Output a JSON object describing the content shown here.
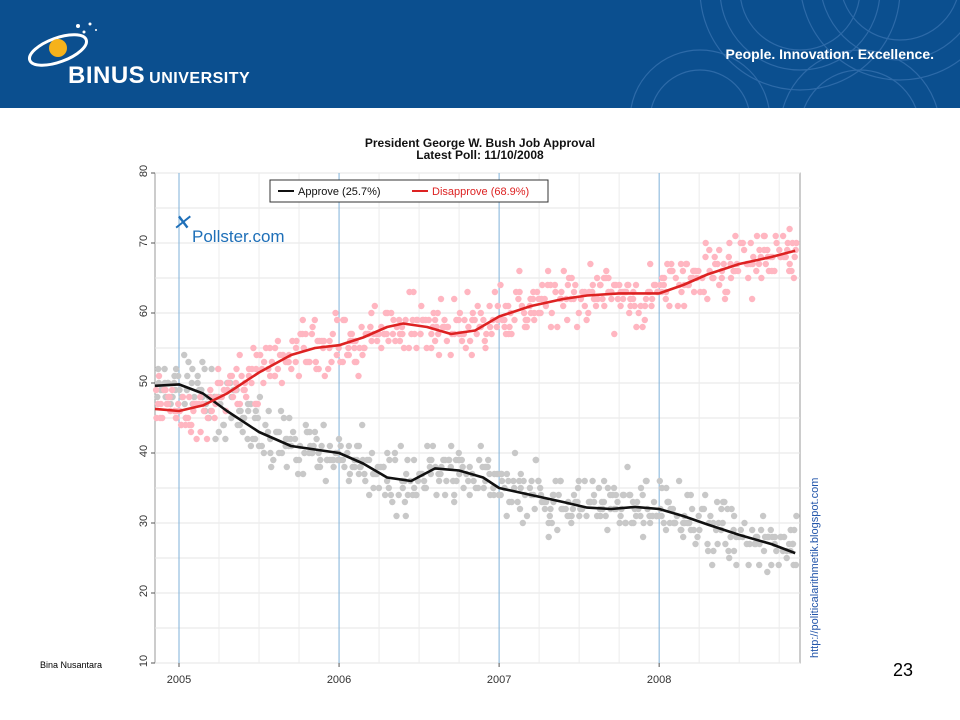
{
  "header": {
    "university_name": "BINUS",
    "university_suffix": "UNIVERSITY",
    "tagline": "People. Innovation. Excellence."
  },
  "footer": {
    "left_text": "Bina Nusantara",
    "page_number": "23"
  },
  "chart_data": {
    "type": "scatter",
    "title": "President George W. Bush Job Approval",
    "subtitle": "Latest Poll: 11/10/2008",
    "watermark": "Pollster.com",
    "side_credit": "http://politicalarithmetik.blogspot.com",
    "xlim": [
      2004.85,
      2008.88
    ],
    "ylim": [
      10,
      80
    ],
    "yticks": [
      10,
      20,
      30,
      40,
      50,
      60,
      70,
      80
    ],
    "xticks": [
      2005,
      2006,
      2007,
      2008
    ],
    "xtick_labels": [
      "2005",
      "2006",
      "2007",
      "2008"
    ],
    "legend_position": "top",
    "grid": true,
    "series": [
      {
        "name": "Approve (25.7%)",
        "color": "#111111",
        "point_color": "#c8c8c8",
        "trend": [
          [
            2004.85,
            49.6
          ],
          [
            2005.0,
            49.8
          ],
          [
            2005.15,
            48.5
          ],
          [
            2005.3,
            46.0
          ],
          [
            2005.5,
            43.0
          ],
          [
            2005.7,
            41.0
          ],
          [
            2005.85,
            40.5
          ],
          [
            2006.0,
            40.0
          ],
          [
            2006.15,
            38.5
          ],
          [
            2006.3,
            36.5
          ],
          [
            2006.45,
            36.0
          ],
          [
            2006.6,
            37.8
          ],
          [
            2006.75,
            37.5
          ],
          [
            2006.9,
            36.5
          ],
          [
            2007.0,
            35.0
          ],
          [
            2007.2,
            34.0
          ],
          [
            2007.4,
            33.0
          ],
          [
            2007.55,
            32.2
          ],
          [
            2007.7,
            32.0
          ],
          [
            2007.85,
            32.3
          ],
          [
            2008.0,
            32.0
          ],
          [
            2008.15,
            31.0
          ],
          [
            2008.3,
            29.8
          ],
          [
            2008.5,
            28.3
          ],
          [
            2008.7,
            27.0
          ],
          [
            2008.85,
            25.7
          ]
        ]
      },
      {
        "name": "Disapprove (68.9%)",
        "color": "#dd2222",
        "point_color": "#ffb6c1",
        "trend": [
          [
            2004.85,
            46.3
          ],
          [
            2005.0,
            46.0
          ],
          [
            2005.15,
            46.8
          ],
          [
            2005.3,
            48.5
          ],
          [
            2005.5,
            51.5
          ],
          [
            2005.7,
            54.0
          ],
          [
            2005.85,
            55.0
          ],
          [
            2006.0,
            55.4
          ],
          [
            2006.15,
            56.5
          ],
          [
            2006.3,
            58.0
          ],
          [
            2006.4,
            58.5
          ],
          [
            2006.55,
            58.0
          ],
          [
            2006.7,
            57.0
          ],
          [
            2006.85,
            57.5
          ],
          [
            2007.0,
            59.5
          ],
          [
            2007.2,
            61.0
          ],
          [
            2007.4,
            62.0
          ],
          [
            2007.55,
            62.5
          ],
          [
            2007.75,
            62.8
          ],
          [
            2008.0,
            62.8
          ],
          [
            2008.15,
            64.0
          ],
          [
            2008.3,
            65.5
          ],
          [
            2008.5,
            67.0
          ],
          [
            2008.7,
            68.0
          ],
          [
            2008.85,
            68.9
          ]
        ]
      }
    ]
  }
}
